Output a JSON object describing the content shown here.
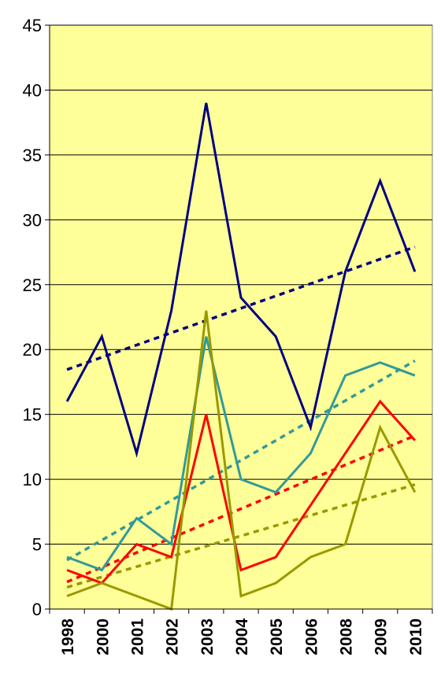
{
  "chart_data": {
    "type": "line",
    "title": "",
    "xlabel": "",
    "ylabel": "",
    "categories": [
      "1998",
      "2000",
      "2001",
      "2002",
      "2003",
      "2004",
      "2005",
      "2006",
      "2008",
      "2009",
      "2010"
    ],
    "ylim": [
      0,
      45
    ],
    "yticks": [
      "0",
      "5",
      "10",
      "15",
      "20",
      "25",
      "30",
      "35",
      "40",
      "45"
    ],
    "grid": true,
    "plot_background": "#FFFF99",
    "series": [
      {
        "color": "#000080",
        "values": [
          16,
          21,
          12,
          23,
          39,
          24,
          21,
          14,
          26,
          33,
          26
        ],
        "trendline": {
          "type": "linear",
          "dashed": true
        }
      },
      {
        "color": "#339999",
        "values": [
          4,
          3,
          7,
          5,
          21,
          10,
          9,
          12,
          18,
          19,
          18
        ],
        "trendline": {
          "type": "linear",
          "dashed": true
        }
      },
      {
        "color": "#FF0000",
        "values": [
          3,
          2,
          5,
          4,
          15,
          3,
          4,
          8,
          12,
          16,
          13
        ],
        "trendline": {
          "type": "linear",
          "dashed": true
        }
      },
      {
        "color": "#999900",
        "values": [
          1,
          2,
          1,
          0,
          23,
          1,
          2,
          4,
          5,
          14,
          9
        ],
        "trendline": {
          "type": "linear",
          "dashed": true
        }
      }
    ]
  }
}
